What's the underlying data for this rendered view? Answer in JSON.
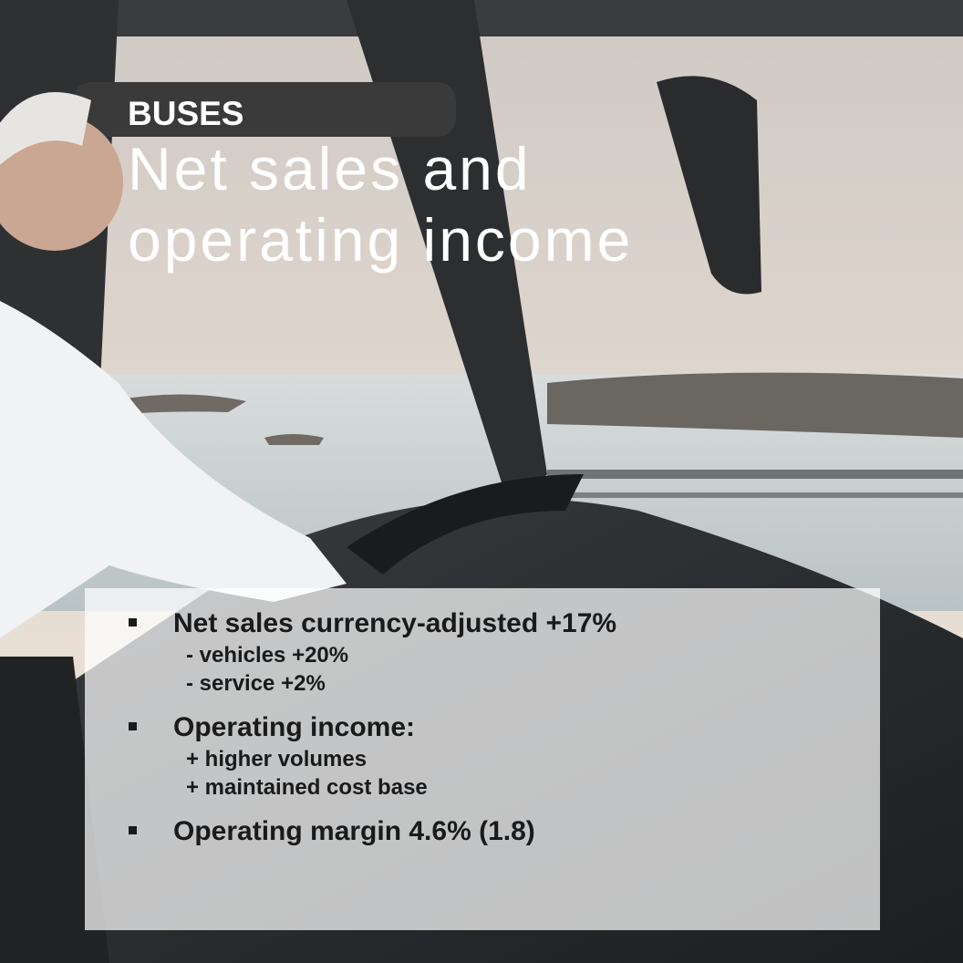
{
  "header": {
    "label": "BUSES",
    "title_lines": [
      "Net sales and",
      "operating income"
    ]
  },
  "bullets": [
    {
      "text": "Net sales currency-adjusted +17%",
      "sub": [
        "- vehicles +20%",
        "- service +2%"
      ]
    },
    {
      "text": "Operating income:",
      "sub": [
        "+ higher volumes",
        "+ maintained cost base"
      ]
    },
    {
      "text": "Operating margin 4.6% (1.8)",
      "sub": []
    }
  ]
}
